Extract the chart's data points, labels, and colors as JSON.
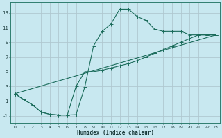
{
  "xlabel": "Humidex (Indice chaleur)",
  "bg_color": "#c8e8f0",
  "grid_color": "#b0c8d0",
  "line_color": "#1a6b5a",
  "xlim": [
    -0.5,
    23.5
  ],
  "ylim": [
    -2.0,
    14.5
  ],
  "xticks": [
    0,
    1,
    2,
    3,
    4,
    5,
    6,
    7,
    8,
    9,
    10,
    11,
    12,
    13,
    14,
    15,
    16,
    17,
    18,
    19,
    20,
    21,
    22,
    23
  ],
  "yticks": [
    -1,
    1,
    3,
    5,
    7,
    9,
    11,
    13
  ],
  "line1_x": [
    0,
    1,
    2,
    3,
    4,
    5,
    6,
    7,
    8,
    9,
    10,
    11,
    12,
    13,
    14,
    15,
    16,
    17,
    18,
    19,
    20,
    21,
    22,
    23
  ],
  "line1_y": [
    2.0,
    1.2,
    0.5,
    -0.5,
    -0.8,
    -0.9,
    -0.9,
    -0.85,
    2.9,
    8.5,
    10.5,
    11.5,
    13.5,
    13.5,
    12.5,
    12.0,
    10.8,
    10.5,
    10.5,
    10.5,
    10.0,
    10.0,
    10.0,
    10.0
  ],
  "line2_x": [
    0,
    1,
    2,
    3,
    4,
    5,
    6,
    7,
    8,
    9,
    10,
    11,
    12,
    13,
    14,
    15,
    16,
    17,
    18,
    19,
    20,
    21,
    22,
    23
  ],
  "line2_y": [
    2.0,
    1.2,
    0.5,
    -0.5,
    -0.8,
    -0.9,
    -0.9,
    3.0,
    5.0,
    5.0,
    5.2,
    5.5,
    5.8,
    6.1,
    6.5,
    7.0,
    7.5,
    8.0,
    8.5,
    9.0,
    9.5,
    10.0,
    10.0,
    10.0
  ],
  "line3_x": [
    0,
    23
  ],
  "line3_y": [
    2.0,
    10.0
  ]
}
